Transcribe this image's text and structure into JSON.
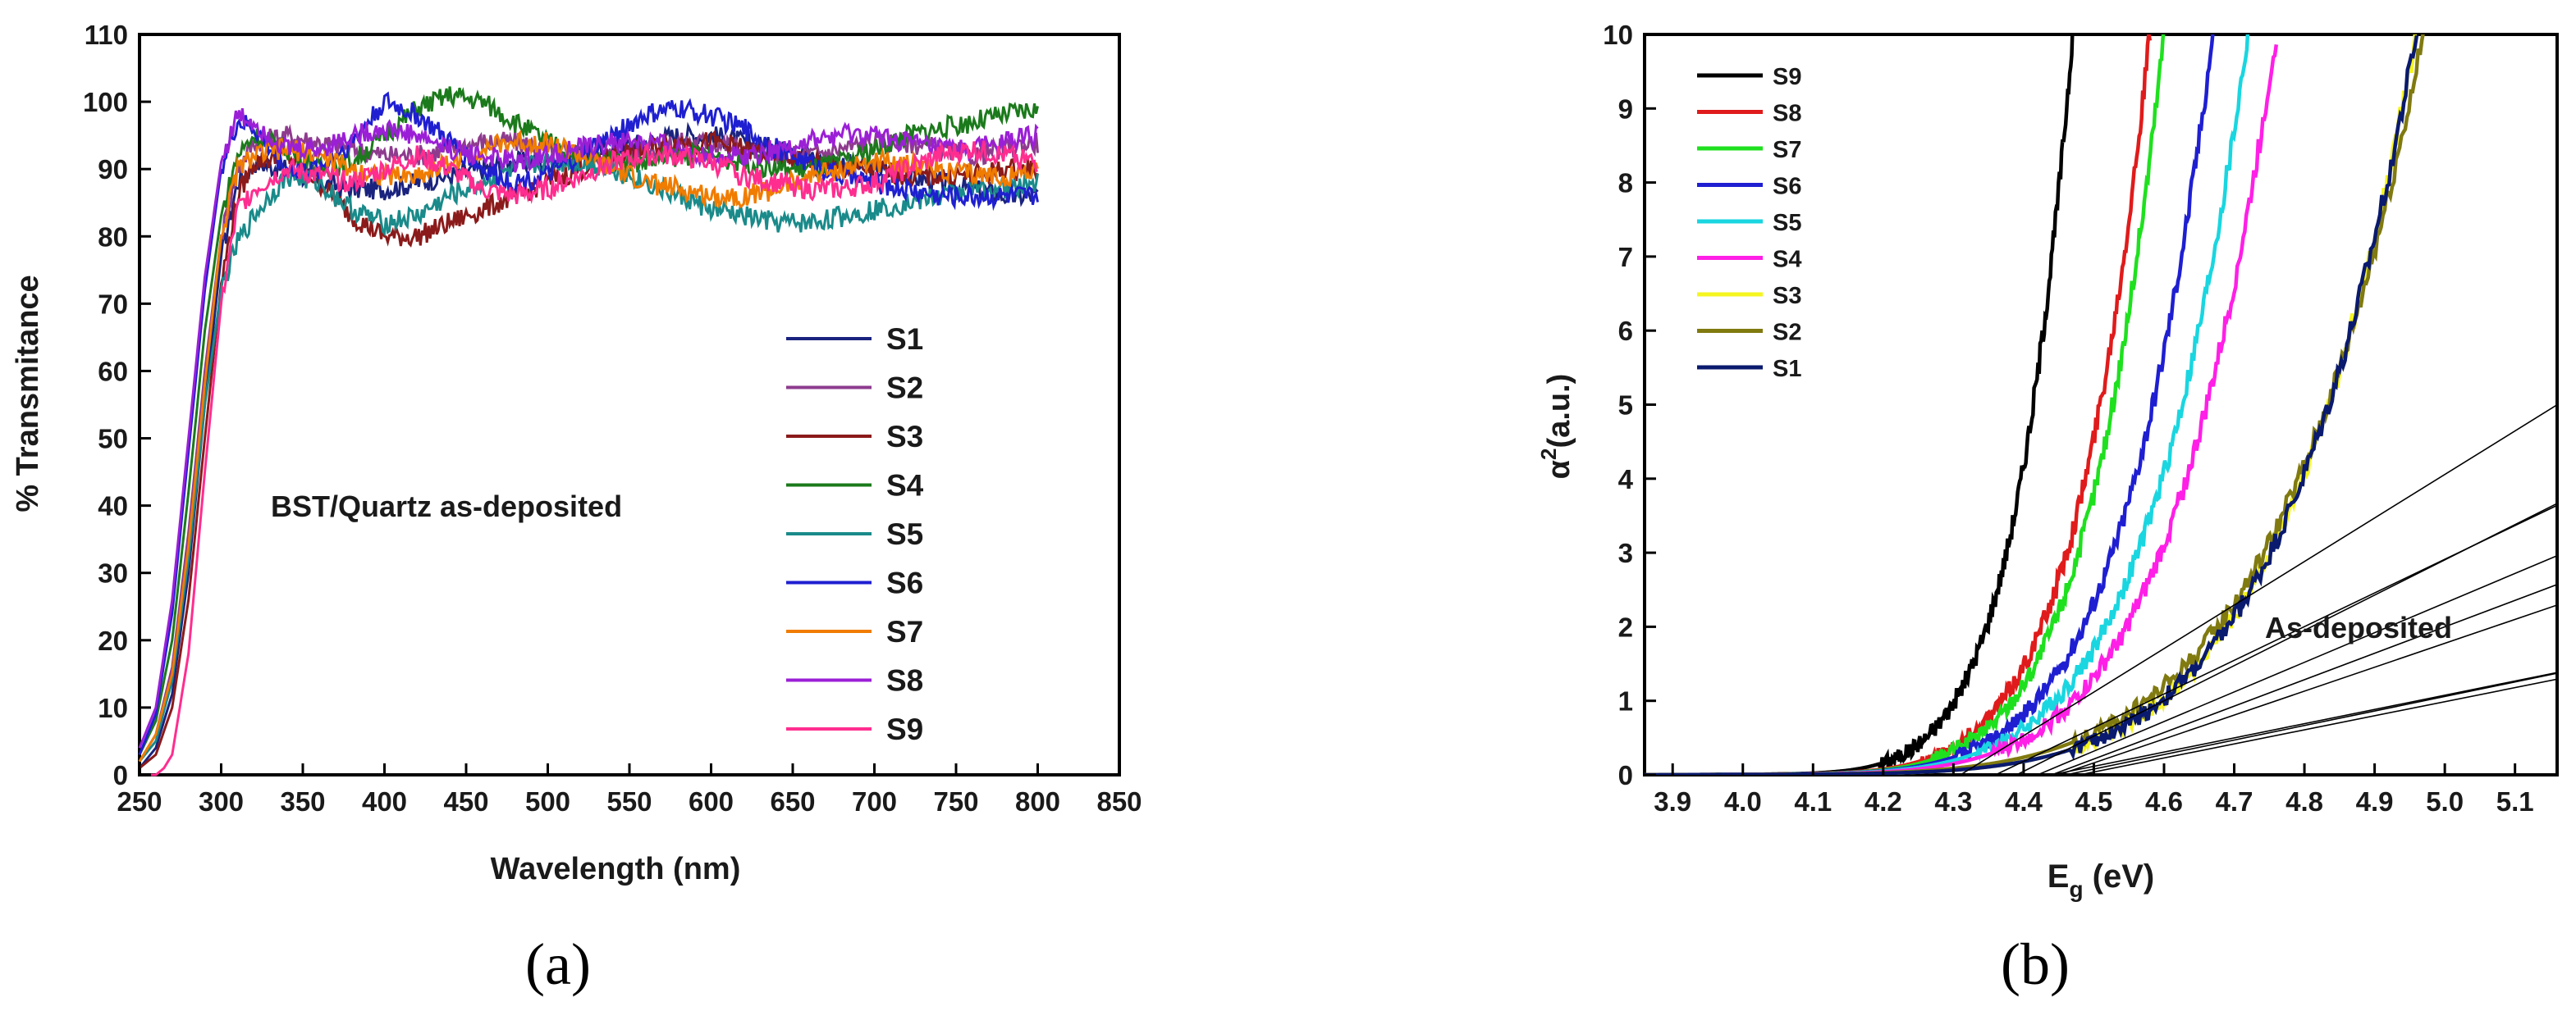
{
  "chart_data": [
    {
      "type": "line",
      "panel_label": "(a)",
      "xlabel": "Wavelength (nm)",
      "ylabel": "% Transmitance",
      "xlim": [
        250,
        850
      ],
      "ylim": [
        0,
        110
      ],
      "xticks": [
        250,
        300,
        350,
        400,
        450,
        500,
        550,
        600,
        650,
        700,
        750,
        800,
        850
      ],
      "yticks": [
        0,
        10,
        20,
        30,
        40,
        50,
        60,
        70,
        80,
        90,
        100,
        110
      ],
      "grid": false,
      "legend_position": "bottom-right",
      "annotation": "BST/Quartz as-deposited",
      "series": [
        {
          "name": "S1",
          "color": "#1a237e",
          "x": [
            250,
            260,
            270,
            280,
            290,
            300,
            310,
            320,
            340,
            360,
            380,
            400,
            420,
            440,
            460,
            480,
            500,
            520,
            540,
            560,
            580,
            600,
            620,
            640,
            660,
            680,
            700,
            720,
            740,
            760,
            780,
            800
          ],
          "y": [
            1,
            4,
            12,
            30,
            55,
            77,
            88,
            91,
            90,
            88,
            87,
            87,
            88,
            89,
            90,
            91,
            91,
            92,
            93,
            94,
            95,
            95,
            94,
            93,
            92,
            91,
            90,
            89,
            88,
            87,
            86,
            86
          ]
        },
        {
          "name": "S2",
          "color": "#8e3b8e",
          "x": [
            250,
            260,
            270,
            280,
            290,
            300,
            310,
            320,
            340,
            360,
            380,
            400,
            420,
            440,
            460,
            480,
            500,
            520,
            540,
            560,
            580,
            600,
            620,
            640,
            660,
            680,
            700,
            720,
            740,
            760,
            780,
            800
          ],
          "y": [
            2,
            6,
            16,
            36,
            60,
            80,
            90,
            94,
            95,
            94,
            93,
            92,
            92,
            93,
            94,
            94,
            93,
            92,
            92,
            93,
            94,
            94,
            93,
            92,
            92,
            93,
            94,
            94,
            93,
            92,
            93,
            94
          ]
        },
        {
          "name": "S3",
          "color": "#8b1a1a",
          "x": [
            250,
            260,
            270,
            280,
            290,
            300,
            310,
            320,
            340,
            360,
            380,
            400,
            420,
            440,
            460,
            480,
            500,
            520,
            540,
            560,
            580,
            600,
            620,
            640,
            660,
            680,
            700,
            720,
            740,
            760,
            780,
            800
          ],
          "y": [
            1,
            3,
            10,
            26,
            50,
            73,
            86,
            91,
            92,
            88,
            83,
            80,
            80,
            82,
            84,
            86,
            88,
            90,
            92,
            93,
            94,
            94,
            93,
            92,
            91,
            90,
            90,
            89,
            89,
            89,
            90,
            90
          ]
        },
        {
          "name": "S4",
          "color": "#1b7a1b",
          "x": [
            250,
            260,
            270,
            280,
            290,
            300,
            310,
            320,
            340,
            360,
            380,
            400,
            420,
            440,
            460,
            480,
            500,
            520,
            540,
            560,
            580,
            600,
            620,
            640,
            660,
            680,
            700,
            720,
            740,
            760,
            780,
            800
          ],
          "y": [
            3,
            8,
            20,
            42,
            66,
            83,
            92,
            95,
            93,
            90,
            91,
            95,
            99,
            101,
            100,
            97,
            94,
            92,
            91,
            91,
            92,
            92,
            91,
            90,
            90,
            91,
            93,
            95,
            96,
            97,
            98,
            99
          ]
        },
        {
          "name": "S5",
          "color": "#1a8a8a",
          "x": [
            250,
            260,
            270,
            280,
            290,
            300,
            310,
            320,
            340,
            360,
            380,
            400,
            420,
            440,
            460,
            480,
            500,
            520,
            540,
            560,
            580,
            600,
            620,
            640,
            660,
            680,
            700,
            720,
            740,
            760,
            780,
            800
          ],
          "y": [
            2,
            5,
            14,
            32,
            55,
            72,
            79,
            83,
            89,
            88,
            84,
            82,
            83,
            86,
            88,
            90,
            91,
            91,
            90,
            88,
            86,
            84,
            83,
            82,
            82,
            83,
            84,
            85,
            86,
            87,
            87,
            88
          ]
        },
        {
          "name": "S6",
          "color": "#1f1fd1",
          "x": [
            250,
            260,
            270,
            280,
            290,
            300,
            310,
            320,
            340,
            360,
            380,
            400,
            420,
            440,
            460,
            480,
            500,
            520,
            540,
            560,
            580,
            600,
            620,
            640,
            660,
            680,
            700,
            720,
            740,
            760,
            780,
            800
          ],
          "y": [
            3,
            9,
            24,
            48,
            72,
            90,
            97,
            96,
            90,
            90,
            94,
            100,
            98,
            94,
            90,
            88,
            89,
            92,
            95,
            98,
            99,
            98,
            96,
            93,
            91,
            89,
            88,
            87,
            86,
            86,
            86,
            86
          ]
        },
        {
          "name": "S7",
          "color": "#f07c00",
          "x": [
            250,
            260,
            270,
            280,
            290,
            300,
            310,
            320,
            340,
            360,
            380,
            400,
            420,
            440,
            460,
            480,
            500,
            520,
            540,
            560,
            580,
            600,
            620,
            640,
            660,
            680,
            700,
            720,
            740,
            760,
            780,
            800
          ],
          "y": [
            2,
            6,
            15,
            34,
            58,
            80,
            90,
            92,
            93,
            92,
            90,
            89,
            89,
            91,
            93,
            94,
            94,
            92,
            90,
            88,
            87,
            86,
            86,
            87,
            89,
            90,
            91,
            91,
            90,
            89,
            89,
            90
          ]
        },
        {
          "name": "S8",
          "color": "#9b1fd6",
          "x": [
            250,
            260,
            270,
            280,
            290,
            300,
            310,
            320,
            340,
            360,
            380,
            400,
            420,
            440,
            460,
            480,
            500,
            520,
            540,
            560,
            580,
            600,
            620,
            640,
            660,
            680,
            700,
            720,
            740,
            760,
            780,
            800
          ],
          "y": [
            4,
            10,
            26,
            50,
            74,
            91,
            98,
            97,
            93,
            93,
            95,
            96,
            95,
            93,
            92,
            91,
            92,
            93,
            94,
            94,
            93,
            92,
            92,
            93,
            94,
            95,
            95,
            94,
            93,
            93,
            94,
            95
          ]
        },
        {
          "name": "S9",
          "color": "#ff2d8f",
          "x": [
            250,
            255,
            260,
            265,
            270,
            280,
            290,
            300,
            310,
            320,
            340,
            360,
            380,
            400,
            420,
            440,
            460,
            480,
            500,
            520,
            540,
            560,
            580,
            600,
            620,
            640,
            660,
            680,
            700,
            720,
            740,
            760,
            780,
            800
          ],
          "y": [
            0,
            0,
            0,
            1,
            3,
            18,
            45,
            70,
            84,
            87,
            90,
            89,
            88,
            90,
            92,
            90,
            87,
            86,
            87,
            89,
            91,
            92,
            92,
            91,
            89,
            88,
            87,
            87,
            88,
            90,
            92,
            93,
            92,
            91
          ]
        }
      ]
    },
    {
      "type": "line",
      "panel_label": "(b)",
      "xlabel_main": "E",
      "xlabel_sub": "g",
      "xlabel_unit": " (eV)",
      "ylabel_main": "α",
      "ylabel_sup": "2",
      "ylabel_unit": "(a.u.)",
      "xlim": [
        3.86,
        5.16
      ],
      "ylim": [
        0,
        10
      ],
      "xticks": [
        3.9,
        4.0,
        4.1,
        4.2,
        4.3,
        4.4,
        4.5,
        4.6,
        4.7,
        4.8,
        4.9,
        5.0,
        5.1
      ],
      "yticks": [
        0,
        1,
        2,
        3,
        4,
        5,
        6,
        7,
        8,
        9,
        10
      ],
      "grid": false,
      "legend_position": "top-left",
      "annotation": "As-deposited",
      "series": [
        {
          "name": "S9",
          "color": "#000000",
          "onset": 3.86,
          "edge": 4.47,
          "curvature": 3.0,
          "fit_x0": 4.31,
          "fit_slope": 58.8
        },
        {
          "name": "S8",
          "color": "#e01b1b",
          "onset": 3.86,
          "edge": 4.58,
          "curvature": 2.8,
          "fit_x0": 4.36,
          "fit_slope": 45.5
        },
        {
          "name": "S7",
          "color": "#1fe01f",
          "onset": 3.86,
          "edge": 4.6,
          "curvature": 2.8,
          "fit_x0": 4.39,
          "fit_slope": 47.6
        },
        {
          "name": "S6",
          "color": "#1f1fd1",
          "onset": 3.86,
          "edge": 4.67,
          "curvature": 2.6,
          "fit_x0": 4.42,
          "fit_slope": 40.0
        },
        {
          "name": "S5",
          "color": "#19d6e0",
          "onset": 3.86,
          "edge": 4.72,
          "curvature": 2.5,
          "fit_x0": 4.44,
          "fit_slope": 35.7
        },
        {
          "name": "S4",
          "color": "#ff1fe6",
          "onset": 3.86,
          "edge": 4.76,
          "curvature": 2.5,
          "fit_x0": 4.45,
          "fit_slope": 32.3
        },
        {
          "name": "S3",
          "color": "#f5f51f",
          "onset": 3.86,
          "edge": 4.96,
          "curvature": 2.4,
          "fit_x0": 4.46,
          "fit_slope": 19.6
        },
        {
          "name": "S2",
          "color": "#807a10",
          "onset": 3.86,
          "edge": 4.97,
          "curvature": 2.2,
          "fit_x0": 4.48,
          "fit_slope": 19.0
        },
        {
          "name": "S1",
          "color": "#0a1a6e",
          "onset": 3.86,
          "edge": 4.96,
          "curvature": 2.4,
          "fit_x0": 4.44,
          "fit_slope": 19.2
        }
      ]
    }
  ]
}
